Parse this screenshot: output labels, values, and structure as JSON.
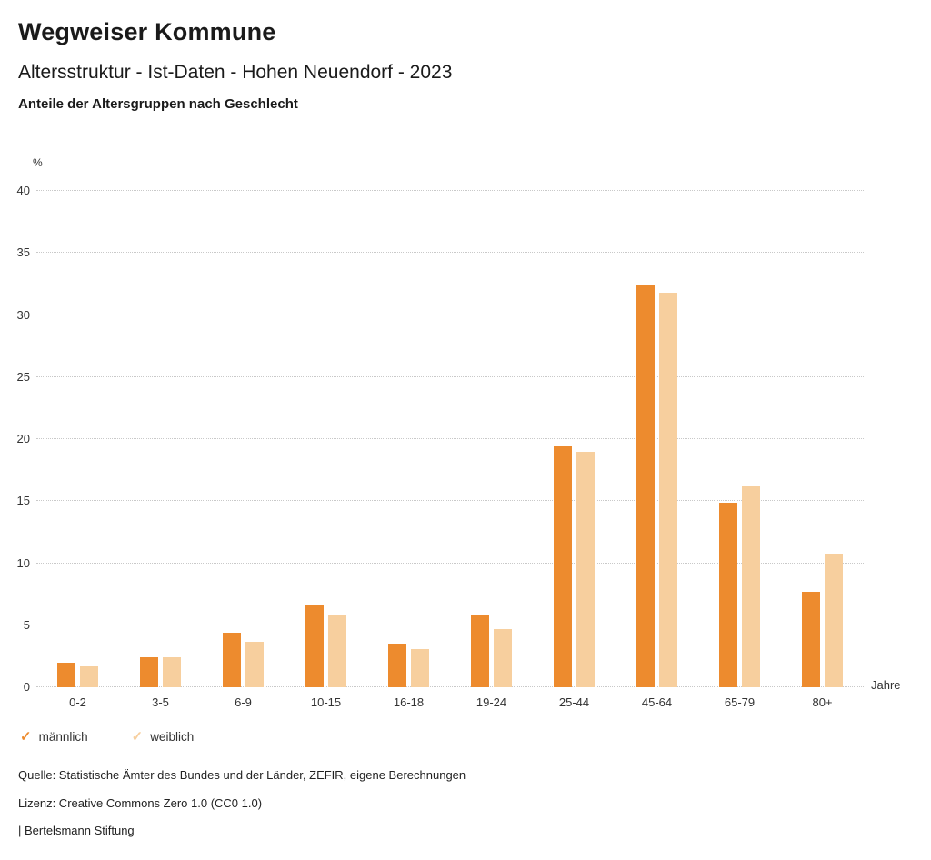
{
  "header": {
    "title": "Wegweiser Kommune",
    "subtitle": "Altersstruktur - Ist-Daten - Hohen Neuendorf - 2023",
    "chart_heading": "Anteile der Altersgruppen nach Geschlecht"
  },
  "chart_data": {
    "type": "bar",
    "categories": [
      "0-2",
      "3-5",
      "6-9",
      "10-15",
      "16-18",
      "19-24",
      "25-44",
      "45-64",
      "65-79",
      "80+"
    ],
    "series": [
      {
        "key": "maennlich",
        "name": "männlich",
        "color": "#ED8B2E",
        "values": [
          2.0,
          2.4,
          4.4,
          6.6,
          3.5,
          5.8,
          19.4,
          32.4,
          14.9,
          7.7
        ]
      },
      {
        "key": "weiblich",
        "name": "weiblich",
        "color": "#F7CF9E",
        "values": [
          1.7,
          2.4,
          3.7,
          5.8,
          3.1,
          4.7,
          19.0,
          31.8,
          16.2,
          10.8
        ]
      }
    ],
    "title": "Anteile der Altersgruppen nach Geschlecht",
    "xlabel": "Jahre",
    "ylabel": "%",
    "ylim": [
      0,
      40
    ],
    "ytick_step": 5,
    "grid": true,
    "legend_position": "bottom",
    "legend_icon": "check-icon"
  },
  "footer": {
    "source": "Quelle: Statistische Ämter des Bundes und der Länder, ZEFIR, eigene Berechnungen",
    "license": "Lizenz: Creative Commons Zero 1.0 (CC0 1.0)",
    "attribution": "| Bertelsmann Stiftung"
  }
}
